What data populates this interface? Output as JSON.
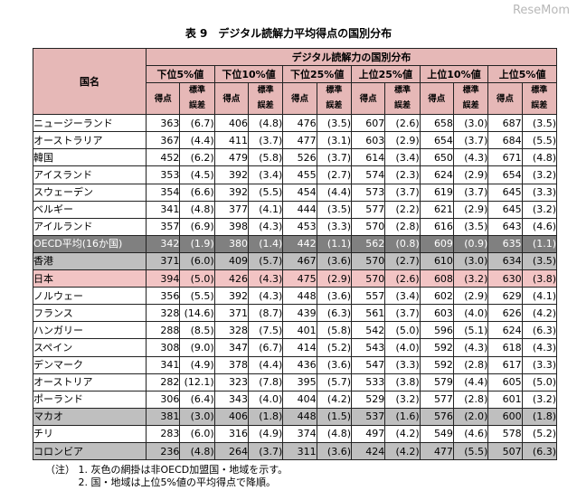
{
  "watermark": "ReseMom",
  "title": "表 9　デジタル読解力平均得点の国別分布",
  "header": {
    "country": "国名",
    "group": "デジタル読解力の国別分布",
    "percentiles": [
      "下位5%値",
      "下位10%値",
      "下位25%値",
      "上位25%値",
      "上位10%値",
      "上位5%値"
    ],
    "score": "得点",
    "se_line1": "標準",
    "se_line2": "誤差"
  },
  "rows": [
    {
      "name": "ニュージーランド",
      "v": [
        "363",
        "(6.7)",
        "406",
        "(4.8)",
        "476",
        "(3.5)",
        "607",
        "(2.6)",
        "658",
        "(3.0)",
        "687",
        "(3.5)"
      ],
      "style": ""
    },
    {
      "name": "オーストラリア",
      "v": [
        "367",
        "(4.4)",
        "411",
        "(3.7)",
        "477",
        "(3.1)",
        "603",
        "(2.9)",
        "654",
        "(3.7)",
        "684",
        "(5.5)"
      ],
      "style": ""
    },
    {
      "name": "韓国",
      "v": [
        "452",
        "(6.2)",
        "479",
        "(5.8)",
        "526",
        "(3.7)",
        "614",
        "(3.4)",
        "650",
        "(4.3)",
        "671",
        "(4.8)"
      ],
      "style": ""
    },
    {
      "name": "アイスランド",
      "v": [
        "353",
        "(4.5)",
        "392",
        "(3.4)",
        "455",
        "(2.7)",
        "574",
        "(2.3)",
        "624",
        "(2.9)",
        "654",
        "(3.2)"
      ],
      "style": ""
    },
    {
      "name": "スウェーデン",
      "v": [
        "354",
        "(6.6)",
        "392",
        "(5.5)",
        "454",
        "(4.4)",
        "573",
        "(3.7)",
        "619",
        "(3.7)",
        "645",
        "(3.3)"
      ],
      "style": ""
    },
    {
      "name": "ベルギー",
      "v": [
        "341",
        "(4.8)",
        "377",
        "(4.1)",
        "444",
        "(3.5)",
        "577",
        "(2.2)",
        "621",
        "(2.9)",
        "645",
        "(3.2)"
      ],
      "style": ""
    },
    {
      "name": "アイルランド",
      "v": [
        "357",
        "(6.9)",
        "398",
        "(4.3)",
        "453",
        "(3.3)",
        "570",
        "(2.8)",
        "616",
        "(3.5)",
        "643",
        "(4.6)"
      ],
      "style": ""
    },
    {
      "name": "OECD平均(16か国)",
      "v": [
        "342",
        "(1.9)",
        "380",
        "(1.4)",
        "442",
        "(1.1)",
        "562",
        "(0.8)",
        "609",
        "(0.9)",
        "635",
        "(1.1)"
      ],
      "style": "oecd"
    },
    {
      "name": "香港",
      "v": [
        "371",
        "(6.0)",
        "409",
        "(5.7)",
        "467",
        "(3.6)",
        "570",
        "(2.7)",
        "610",
        "(3.0)",
        "634",
        "(3.5)"
      ],
      "style": "gray"
    },
    {
      "name": "日本",
      "v": [
        "394",
        "(5.0)",
        "426",
        "(4.3)",
        "475",
        "(2.9)",
        "570",
        "(2.6)",
        "608",
        "(3.2)",
        "630",
        "(3.8)"
      ],
      "style": "japan"
    },
    {
      "name": "ノルウェー",
      "v": [
        "356",
        "(5.5)",
        "392",
        "(4.3)",
        "448",
        "(3.6)",
        "557",
        "(3.4)",
        "602",
        "(2.9)",
        "629",
        "(4.1)"
      ],
      "style": ""
    },
    {
      "name": "フランス",
      "v": [
        "328",
        "(14.6)",
        "371",
        "(8.7)",
        "439",
        "(6.3)",
        "561",
        "(3.7)",
        "603",
        "(4.0)",
        "626",
        "(4.2)"
      ],
      "style": ""
    },
    {
      "name": "ハンガリー",
      "v": [
        "288",
        "(8.5)",
        "328",
        "(7.5)",
        "401",
        "(5.8)",
        "542",
        "(5.0)",
        "596",
        "(5.1)",
        "624",
        "(6.3)"
      ],
      "style": ""
    },
    {
      "name": "スペイン",
      "v": [
        "308",
        "(9.0)",
        "347",
        "(6.7)",
        "414",
        "(5.2)",
        "543",
        "(4.0)",
        "592",
        "(4.3)",
        "618",
        "(4.3)"
      ],
      "style": ""
    },
    {
      "name": "デンマーク",
      "v": [
        "341",
        "(4.9)",
        "378",
        "(4.4)",
        "436",
        "(3.6)",
        "547",
        "(3.3)",
        "592",
        "(2.8)",
        "617",
        "(3.3)"
      ],
      "style": ""
    },
    {
      "name": "オーストリア",
      "v": [
        "282",
        "(12.1)",
        "323",
        "(7.8)",
        "395",
        "(5.7)",
        "533",
        "(3.8)",
        "579",
        "(4.4)",
        "605",
        "(5.0)"
      ],
      "style": ""
    },
    {
      "name": "ポーランド",
      "v": [
        "306",
        "(6.4)",
        "343",
        "(4.0)",
        "404",
        "(4.2)",
        "529",
        "(3.2)",
        "577",
        "(2.8)",
        "601",
        "(3.2)"
      ],
      "style": ""
    },
    {
      "name": "マカオ",
      "v": [
        "381",
        "(3.0)",
        "406",
        "(1.8)",
        "448",
        "(1.5)",
        "537",
        "(1.6)",
        "576",
        "(2.0)",
        "600",
        "(1.8)"
      ],
      "style": "gray"
    },
    {
      "name": "チリ",
      "v": [
        "283",
        "(6.0)",
        "316",
        "(4.9)",
        "374",
        "(4.8)",
        "497",
        "(4.2)",
        "549",
        "(4.6)",
        "578",
        "(5.2)"
      ],
      "style": ""
    },
    {
      "name": "コロンビア",
      "v": [
        "236",
        "(4.8)",
        "264",
        "(3.7)",
        "311",
        "(3.6)",
        "424",
        "(4.2)",
        "477",
        "(5.5)",
        "507",
        "(6.3)"
      ],
      "style": "gray"
    }
  ],
  "notes": [
    "（注）  1.  灰色の網掛は非OECD加盟国・地域を示す。",
    "　　　  2.  国・地域は上位5%値の平均得点で降順。"
  ]
}
